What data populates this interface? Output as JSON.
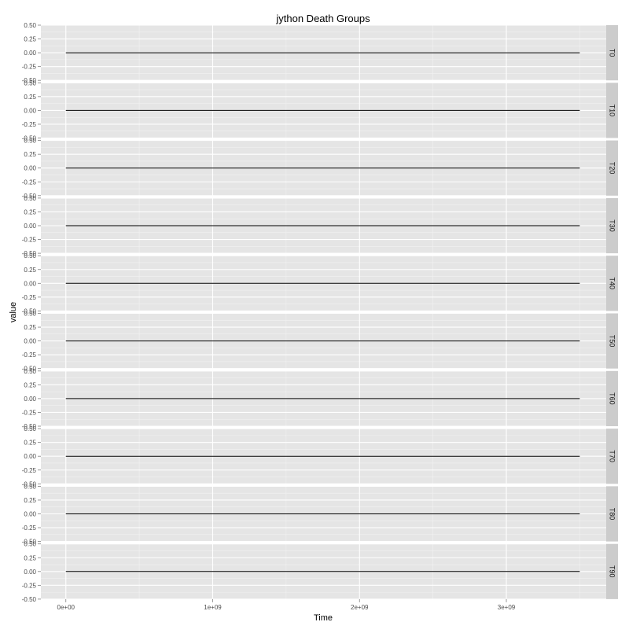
{
  "chart_data": {
    "type": "line",
    "title": "jython Death Groups",
    "xlabel": "Time",
    "ylabel": "value",
    "facet_labels": [
      "T0",
      "T10",
      "T20",
      "T30",
      "T40",
      "T50",
      "T60",
      "T70",
      "T80",
      "T90"
    ],
    "x_ticks": [
      0,
      1000000000,
      2000000000,
      3000000000
    ],
    "x_tick_labels": [
      "0e+00",
      "1e+09",
      "2e+09",
      "3e+09"
    ],
    "y_ticks": [
      -0.5,
      -0.25,
      0,
      0.25,
      0.5
    ],
    "y_tick_labels": [
      "-0.50",
      "-0.25",
      "0.00",
      "0.25",
      "0.50"
    ],
    "xlim": [
      -170000000,
      3680000000
    ],
    "ylim": [
      -0.5,
      0.5
    ],
    "grid": true,
    "series": [
      {
        "facet": "T0",
        "x": [
          0,
          3500000000
        ],
        "y": [
          0,
          0
        ]
      },
      {
        "facet": "T10",
        "x": [
          0,
          3500000000
        ],
        "y": [
          0,
          0
        ]
      },
      {
        "facet": "T20",
        "x": [
          0,
          3500000000
        ],
        "y": [
          0,
          0
        ]
      },
      {
        "facet": "T30",
        "x": [
          0,
          3500000000
        ],
        "y": [
          0,
          0
        ]
      },
      {
        "facet": "T40",
        "x": [
          0,
          3500000000
        ],
        "y": [
          0,
          0
        ]
      },
      {
        "facet": "T50",
        "x": [
          0,
          3500000000
        ],
        "y": [
          0,
          0
        ]
      },
      {
        "facet": "T60",
        "x": [
          0,
          3500000000
        ],
        "y": [
          0,
          0
        ]
      },
      {
        "facet": "T70",
        "x": [
          0,
          3500000000
        ],
        "y": [
          0,
          0
        ]
      },
      {
        "facet": "T80",
        "x": [
          0,
          3500000000
        ],
        "y": [
          0,
          0
        ]
      },
      {
        "facet": "T90",
        "x": [
          0,
          3500000000
        ],
        "y": [
          0,
          0
        ]
      }
    ],
    "colors": {
      "panel_background": "#e5e5e5",
      "major_grid": "#ffffff",
      "minor_grid": "#f2f2f2",
      "strip_background": "#cccccc",
      "line": "#000000",
      "tick_text": "#4d4d4d"
    }
  }
}
